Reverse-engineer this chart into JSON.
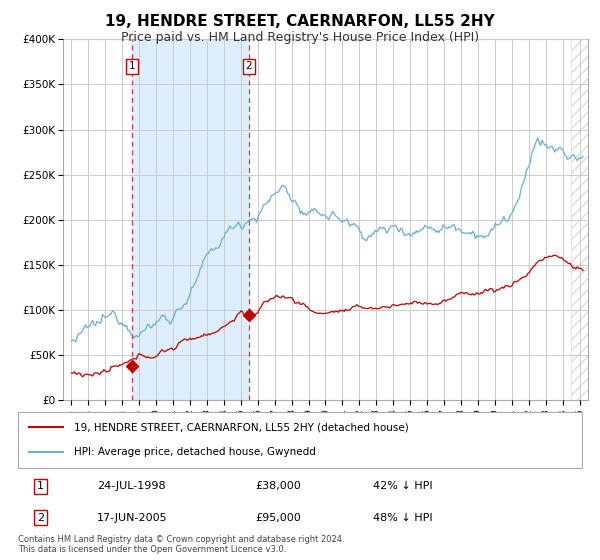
{
  "title": "19, HENDRE STREET, CAERNARFON, LL55 2HY",
  "subtitle": "Price paid vs. HM Land Registry's House Price Index (HPI)",
  "footer": "Contains HM Land Registry data © Crown copyright and database right 2024.\nThis data is licensed under the Open Government Licence v3.0.",
  "legend_line1": "19, HENDRE STREET, CAERNARFON, LL55 2HY (detached house)",
  "legend_line2": "HPI: Average price, detached house, Gwynedd",
  "transaction1_date": "24-JUL-1998",
  "transaction1_price": "£38,000",
  "transaction1_hpi": "42% ↓ HPI",
  "transaction2_date": "17-JUN-2005",
  "transaction2_price": "£95,000",
  "transaction2_hpi": "48% ↓ HPI",
  "transaction1_year": 1998.56,
  "transaction2_year": 2005.46,
  "transaction1_value": 38000,
  "transaction2_value": 95000,
  "ylim": [
    0,
    400000
  ],
  "xlim_start": 1994.5,
  "xlim_end": 2025.5,
  "hpi_color": "#6aaed6",
  "price_color": "#c00000",
  "vline_color": "#d04040",
  "shade_color": "#ddeeff",
  "background_color": "#ffffff",
  "grid_color": "#cccccc",
  "title_fontsize": 11,
  "subtitle_fontsize": 9,
  "ytick_labels": [
    "£0",
    "£50K",
    "£100K",
    "£150K",
    "£200K",
    "£250K",
    "£300K",
    "£350K",
    "£400K"
  ],
  "ytick_values": [
    0,
    50000,
    100000,
    150000,
    200000,
    250000,
    300000,
    350000,
    400000
  ],
  "hatch_start": 2024.5
}
